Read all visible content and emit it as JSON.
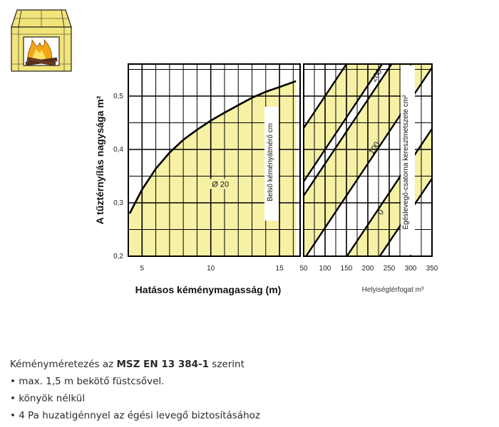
{
  "colors": {
    "fill": "#f7f1a6",
    "grid": "#000000",
    "frame": "#000000",
    "logo_yellow": "#f1e47a",
    "logo_flame": "#f2a614"
  },
  "logo": {
    "icon": "fireplace-icon"
  },
  "chart_data": [
    {
      "type": "area",
      "xlabel": "Hatásos kéménymagasság (m)",
      "ylabel": "A tűztérnyílás nagysága m²",
      "xlim": [
        4,
        16.5
      ],
      "ylim": [
        0.2,
        0.56
      ],
      "x_ticks": [
        5,
        10,
        15
      ],
      "y_ticks": [
        0.2,
        0.3,
        0.4,
        0.5
      ],
      "y_tick_labels": [
        "0,2",
        "0,3",
        "0,4",
        "0,5"
      ],
      "series": [
        {
          "name": "Ø 20",
          "x": [
            4.1,
            4.5,
            5,
            6,
            7,
            8,
            9,
            10,
            11,
            12,
            13,
            14,
            15,
            16.2
          ],
          "y": [
            0.28,
            0.3,
            0.325,
            0.364,
            0.394,
            0.418,
            0.437,
            0.454,
            0.469,
            0.483,
            0.497,
            0.508,
            0.517,
            0.528
          ]
        }
      ],
      "annotations": [
        {
          "text": "Ø 20",
          "x": 10.7,
          "y": 0.33
        }
      ],
      "inner_label": "Belső kéményátmérő cm",
      "grid": true
    },
    {
      "type": "line",
      "xlabel": "Helyiségtérfogat m³",
      "ylabel": "Égéslevegő-csatorna keresztmetszete cm²",
      "xlim": [
        50,
        350
      ],
      "x_ticks": [
        50,
        100,
        150,
        200,
        250,
        300,
        350
      ],
      "band_labels": [
        "0",
        "100",
        "200"
      ],
      "grid": true
    }
  ],
  "caption": {
    "lead_prefix": "Kéményméretezés az ",
    "standard": "MSZ EN 13 384-1",
    "lead_suffix": " szerint",
    "bullets": [
      "max. 1,5 m bekötő füstcsővel.",
      "könyök nélkül",
      "4 Pa huzatigénnyel az égési levegő biztosításához"
    ]
  }
}
